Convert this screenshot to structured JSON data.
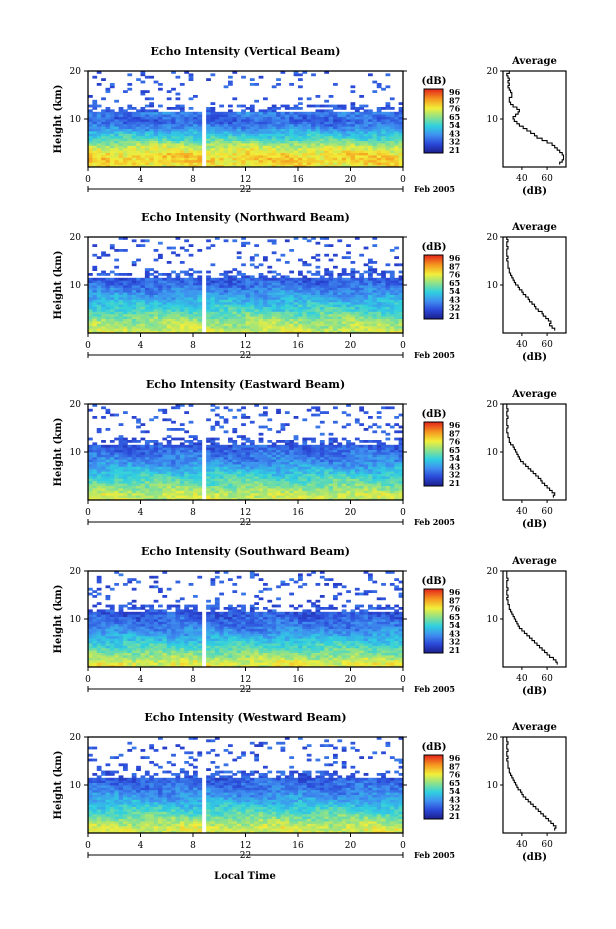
{
  "figure": {
    "x_label": "Local Time",
    "date_label": "Feb 2005",
    "day_label": "22"
  },
  "chart_data": [
    {
      "type": "heatmap",
      "title": "Echo Intensity (Vertical Beam)",
      "ylabel": "Height (km)",
      "xlabel": "",
      "x_ticks": [
        "0",
        "4",
        "8",
        "12",
        "16",
        "20",
        "0"
      ],
      "xlim": [
        0,
        24
      ],
      "y_ticks": [
        "20",
        "10"
      ],
      "ylim": [
        0,
        20
      ],
      "colorbar": {
        "label": "(dB)",
        "ticks": [
          "96",
          "87",
          "76",
          "65",
          "54",
          "43",
          "32",
          "21"
        ],
        "range": [
          21,
          96
        ]
      },
      "data_gap_hour": 8.8,
      "profile": {
        "title": "Average",
        "xlabel": "(dB)",
        "x_ticks": [
          "40",
          "60"
        ],
        "xlim": [
          25,
          75
        ],
        "height_km": [
          0.5,
          1,
          1.5,
          2,
          2.5,
          3,
          3.5,
          4,
          4.5,
          5,
          5.5,
          6,
          6.5,
          7,
          7.5,
          8,
          8.5,
          9,
          9.5,
          10,
          10.5,
          11,
          11.5,
          12,
          12.5,
          13,
          13.5,
          14,
          14.5,
          15,
          15.5,
          16,
          16.5,
          17,
          17.5,
          18,
          18.5,
          19,
          19.5,
          20
        ],
        "avg_db": [
          70,
          72,
          73,
          73,
          72,
          70,
          68,
          66,
          64,
          60,
          56,
          52,
          50,
          47,
          44,
          41,
          38,
          36,
          34,
          33,
          35,
          37,
          38,
          36,
          33,
          31,
          30,
          30,
          32,
          32,
          31,
          30,
          29,
          30,
          29,
          30,
          29,
          28,
          30,
          29
        ]
      }
    },
    {
      "type": "heatmap",
      "title": "Echo Intensity (Northward Beam)",
      "ylabel": "Height (km)",
      "xlabel": "",
      "x_ticks": [
        "0",
        "4",
        "8",
        "12",
        "16",
        "20",
        "0"
      ],
      "xlim": [
        0,
        24
      ],
      "y_ticks": [
        "20",
        "10"
      ],
      "ylim": [
        0,
        20
      ],
      "colorbar": {
        "label": "(dB)",
        "ticks": [
          "96",
          "87",
          "76",
          "65",
          "54",
          "43",
          "32",
          "21"
        ],
        "range": [
          21,
          96
        ]
      },
      "data_gap_hour": 8.8,
      "profile": {
        "title": "Average",
        "xlabel": "(dB)",
        "x_ticks": [
          "40",
          "60"
        ],
        "xlim": [
          25,
          75
        ],
        "height_km": [
          0.5,
          1,
          1.5,
          2,
          2.5,
          3,
          3.5,
          4,
          4.5,
          5,
          5.5,
          6,
          6.5,
          7,
          7.5,
          8,
          8.5,
          9,
          9.5,
          10,
          10.5,
          11,
          11.5,
          12,
          12.5,
          13,
          13.5,
          14,
          14.5,
          15,
          15.5,
          16,
          16.5,
          17,
          17.5,
          18,
          18.5,
          19,
          19.5,
          20
        ],
        "avg_db": [
          66,
          64,
          62,
          63,
          61,
          59,
          57,
          56,
          53,
          51,
          50,
          48,
          46,
          45,
          43,
          41,
          40,
          38,
          37,
          35,
          34,
          33,
          32,
          31,
          30,
          30,
          29,
          29,
          29,
          28,
          29,
          28,
          28,
          28,
          29,
          28,
          28,
          29,
          28,
          28
        ]
      }
    },
    {
      "type": "heatmap",
      "title": "Echo Intensity (Eastward Beam)",
      "ylabel": "Height (km)",
      "xlabel": "",
      "x_ticks": [
        "0",
        "4",
        "8",
        "12",
        "16",
        "20",
        "0"
      ],
      "xlim": [
        0,
        24
      ],
      "y_ticks": [
        "20",
        "10"
      ],
      "ylim": [
        0,
        20
      ],
      "colorbar": {
        "label": "(dB)",
        "ticks": [
          "96",
          "87",
          "76",
          "65",
          "54",
          "43",
          "32",
          "21"
        ],
        "range": [
          21,
          96
        ]
      },
      "data_gap_hour": 8.8,
      "profile": {
        "title": "Average",
        "xlabel": "(dB)",
        "x_ticks": [
          "40",
          "60"
        ],
        "xlim": [
          25,
          75
        ],
        "height_km": [
          0.5,
          1,
          1.5,
          2,
          2.5,
          3,
          3.5,
          4,
          4.5,
          5,
          5.5,
          6,
          6.5,
          7,
          7.5,
          8,
          8.5,
          9,
          9.5,
          10,
          10.5,
          11,
          11.5,
          12,
          12.5,
          13,
          13.5,
          14,
          14.5,
          15,
          15.5,
          16,
          16.5,
          17,
          17.5,
          18,
          18.5,
          19,
          19.5,
          20
        ],
        "avg_db": [
          65,
          66,
          64,
          62,
          60,
          58,
          56,
          55,
          53,
          51,
          49,
          47,
          45,
          43,
          41,
          39,
          38,
          37,
          36,
          35,
          34,
          33,
          31,
          30,
          30,
          29,
          29,
          28,
          28,
          29,
          28,
          28,
          28,
          29,
          28,
          28,
          29,
          28,
          28,
          28
        ]
      }
    },
    {
      "type": "heatmap",
      "title": "Echo Intensity (Southward Beam)",
      "ylabel": "Height (km)",
      "xlabel": "",
      "x_ticks": [
        "0",
        "4",
        "8",
        "12",
        "16",
        "20",
        "0"
      ],
      "xlim": [
        0,
        24
      ],
      "y_ticks": [
        "20",
        "10"
      ],
      "ylim": [
        0,
        20
      ],
      "colorbar": {
        "label": "(dB)",
        "ticks": [
          "96",
          "87",
          "76",
          "65",
          "54",
          "43",
          "32",
          "21"
        ],
        "range": [
          21,
          96
        ]
      },
      "data_gap_hour": 8.8,
      "profile": {
        "title": "Average",
        "xlabel": "(dB)",
        "x_ticks": [
          "40",
          "60"
        ],
        "xlim": [
          25,
          75
        ],
        "height_km": [
          0.5,
          1,
          1.5,
          2,
          2.5,
          3,
          3.5,
          4,
          4.5,
          5,
          5.5,
          6,
          6.5,
          7,
          7.5,
          8,
          8.5,
          9,
          9.5,
          10,
          10.5,
          11,
          11.5,
          12,
          12.5,
          13,
          13.5,
          14,
          14.5,
          15,
          15.5,
          16,
          16.5,
          17,
          17.5,
          18,
          18.5,
          19,
          19.5,
          20
        ],
        "avg_db": [
          68,
          67,
          65,
          62,
          60,
          58,
          56,
          54,
          52,
          50,
          48,
          46,
          44,
          42,
          40,
          38,
          37,
          36,
          35,
          34,
          33,
          32,
          31,
          30,
          30,
          29,
          29,
          28,
          29,
          28,
          28,
          29,
          28,
          28,
          28,
          29,
          28,
          28,
          28,
          28
        ]
      }
    },
    {
      "type": "heatmap",
      "title": "Echo Intensity (Westward Beam)",
      "ylabel": "Height (km)",
      "xlabel": "Local Time",
      "x_ticks": [
        "0",
        "4",
        "8",
        "12",
        "16",
        "20",
        "0"
      ],
      "xlim": [
        0,
        24
      ],
      "y_ticks": [
        "20",
        "10"
      ],
      "ylim": [
        0,
        20
      ],
      "colorbar": {
        "label": "(dB)",
        "ticks": [
          "96",
          "87",
          "76",
          "65",
          "54",
          "43",
          "32",
          "21"
        ],
        "range": [
          21,
          96
        ]
      },
      "data_gap_hour": 8.8,
      "profile": {
        "title": "Average",
        "xlabel": "(dB)",
        "x_ticks": [
          "40",
          "60"
        ],
        "xlim": [
          25,
          75
        ],
        "height_km": [
          0.5,
          1,
          1.5,
          2,
          2.5,
          3,
          3.5,
          4,
          4.5,
          5,
          5.5,
          6,
          6.5,
          7,
          7.5,
          8,
          8.5,
          9,
          9.5,
          10,
          10.5,
          11,
          11.5,
          12,
          12.5,
          13,
          13.5,
          14,
          14.5,
          15,
          15.5,
          16,
          16.5,
          17,
          17.5,
          18,
          18.5,
          19,
          19.5,
          20
        ],
        "avg_db": [
          66,
          67,
          65,
          63,
          61,
          59,
          57,
          55,
          53,
          51,
          49,
          47,
          45,
          43,
          41,
          40,
          39,
          37,
          36,
          35,
          34,
          33,
          32,
          31,
          30,
          30,
          29,
          29,
          29,
          28,
          29,
          28,
          28,
          29,
          28,
          28,
          29,
          28,
          28,
          28
        ]
      }
    }
  ]
}
